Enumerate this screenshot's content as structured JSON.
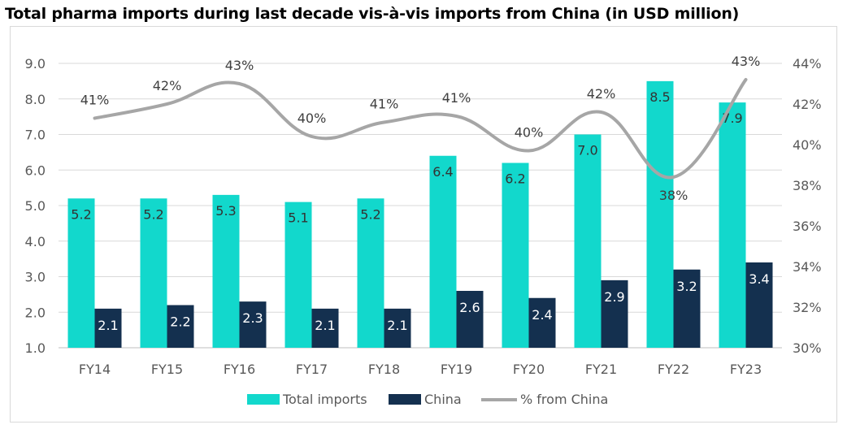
{
  "chart_data": {
    "type": "bar",
    "title": "Total pharma imports during last decade vis-à-vis imports from China (in USD million)",
    "categories": [
      "FY14",
      "FY15",
      "FY16",
      "FY17",
      "FY18",
      "FY19",
      "FY20",
      "FY21",
      "FY22",
      "FY23"
    ],
    "series": [
      {
        "name": "Total imports",
        "type": "bar",
        "axis": "left",
        "color": "#12d8cc",
        "values": [
          5.2,
          5.2,
          5.3,
          5.1,
          5.2,
          6.4,
          6.2,
          7.0,
          8.5,
          7.9
        ],
        "labels": [
          "5.2",
          "5.2",
          "5.3",
          "5.1",
          "5.2",
          "6.4",
          "6.2",
          "7.0",
          "8.5",
          "7.9"
        ]
      },
      {
        "name": "China",
        "type": "bar",
        "axis": "left",
        "color": "#14304f",
        "values": [
          2.1,
          2.2,
          2.3,
          2.1,
          2.1,
          2.6,
          2.4,
          2.9,
          3.2,
          3.4
        ],
        "labels": [
          "2.1",
          "2.2",
          "2.3",
          "2.1",
          "2.1",
          "2.6",
          "2.4",
          "2.9",
          "3.2",
          "3.4"
        ]
      },
      {
        "name": "% from China",
        "type": "line",
        "axis": "right",
        "color": "#a6a6a6",
        "smooth": true,
        "values": [
          41.3,
          42.0,
          43.0,
          40.4,
          41.1,
          41.4,
          39.7,
          41.6,
          38.4,
          43.2
        ],
        "labels": [
          "41%",
          "42%",
          "43%",
          "40%",
          "41%",
          "41%",
          "40%",
          "42%",
          "38%",
          "43%"
        ]
      }
    ],
    "left_axis": {
      "ylim": [
        1.0,
        9.0
      ],
      "ticks": [
        "1.0",
        "2.0",
        "3.0",
        "4.0",
        "5.0",
        "6.0",
        "7.0",
        "8.0",
        "9.0"
      ]
    },
    "right_axis": {
      "ylim": [
        30,
        44
      ],
      "ticks": [
        "30%",
        "32%",
        "34%",
        "36%",
        "38%",
        "40%",
        "42%",
        "44%"
      ]
    },
    "grid": true,
    "legend": "bottom"
  }
}
